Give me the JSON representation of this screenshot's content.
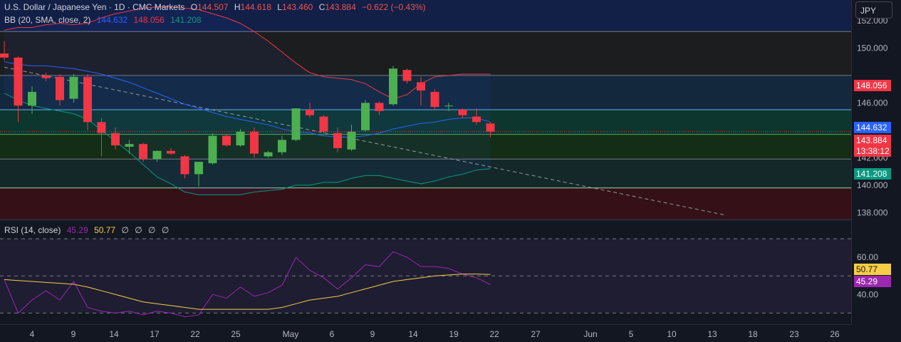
{
  "header": {
    "symbol": "U.S. Dollar / Japanese Yen · 1D · CMC Markets",
    "open_label": "O",
    "open": "144.507",
    "high_label": "H",
    "high": "144.618",
    "low_label": "L",
    "low": "143.460",
    "close_label": "C",
    "close": "143.884",
    "change": "−0.622 (−0.43%)"
  },
  "bb_legend": {
    "label": "BB (20, SMA, close, 2)",
    "middle": "144.632",
    "upper": "148.056",
    "lower": "141.208"
  },
  "rsi_legend": {
    "label": "RSI (14, close)",
    "rsi": "45.29",
    "ma": "50.77",
    "extras": [
      "∅",
      "∅",
      "∅",
      "∅"
    ]
  },
  "currency_button": "JPY",
  "price_tags": {
    "upper": "148.056",
    "middle": "144.632",
    "last": "143.884",
    "countdown": "13:38:12",
    "lower": "141.208"
  },
  "rsi_tags": {
    "ma": "50.77",
    "rsi": "45.29"
  },
  "colors": {
    "background": "#131722",
    "up": "#4caf50",
    "down": "#f23645",
    "bb_upper": "#f23645",
    "bb_middle": "#2962ff",
    "bb_lower": "#089981",
    "rsi_line": "#9c27b0",
    "rsi_ma": "#f7cd45",
    "last_price": "#f23645"
  },
  "chart_data": [
    {
      "type": "candlestick",
      "title": "U.S. Dollar / Japanese Yen · 1D · CMC Markets",
      "ylabel": "JPY",
      "ylim": [
        137.5,
        153.5
      ],
      "y_ticks": [
        138.0,
        140.0,
        142.0,
        144.0,
        146.0,
        150.0,
        152.0
      ],
      "x_ticks": [
        "4",
        "9",
        "14",
        "17",
        "22",
        "25",
        "May",
        "6",
        "9",
        "14",
        "19",
        "22",
        "27",
        "Jun",
        "5",
        "10",
        "13",
        "18",
        "23",
        "26"
      ],
      "bars": [
        {
          "o": 149.6,
          "h": 150.5,
          "l": 149.1,
          "c": 149.3
        },
        {
          "o": 149.3,
          "h": 149.4,
          "l": 144.6,
          "c": 145.8
        },
        {
          "o": 145.8,
          "h": 147.2,
          "l": 145.2,
          "c": 146.8
        },
        {
          "o": 148.0,
          "h": 148.2,
          "l": 147.6,
          "c": 147.8
        },
        {
          "o": 147.9,
          "h": 148.1,
          "l": 145.8,
          "c": 146.2
        },
        {
          "o": 146.3,
          "h": 148.1,
          "l": 146.0,
          "c": 147.9
        },
        {
          "o": 147.9,
          "h": 148.1,
          "l": 144.0,
          "c": 144.6
        },
        {
          "o": 144.6,
          "h": 144.9,
          "l": 142.1,
          "c": 143.8
        },
        {
          "o": 143.8,
          "h": 144.2,
          "l": 142.6,
          "c": 142.9
        },
        {
          "o": 142.8,
          "h": 143.3,
          "l": 142.3,
          "c": 143.0
        },
        {
          "o": 143.0,
          "h": 143.1,
          "l": 141.7,
          "c": 141.9
        },
        {
          "o": 141.9,
          "h": 142.5,
          "l": 141.7,
          "c": 142.5
        },
        {
          "o": 142.5,
          "h": 142.7,
          "l": 142.2,
          "c": 142.3
        },
        {
          "o": 142.1,
          "h": 142.2,
          "l": 140.5,
          "c": 140.8
        },
        {
          "o": 140.8,
          "h": 141.6,
          "l": 139.9,
          "c": 141.7
        },
        {
          "o": 141.6,
          "h": 143.8,
          "l": 141.5,
          "c": 143.6
        },
        {
          "o": 143.6,
          "h": 143.7,
          "l": 142.8,
          "c": 142.9
        },
        {
          "o": 142.9,
          "h": 144.1,
          "l": 142.8,
          "c": 143.9
        },
        {
          "o": 143.9,
          "h": 144.2,
          "l": 142.0,
          "c": 142.3
        },
        {
          "o": 142.1,
          "h": 142.5,
          "l": 142.0,
          "c": 142.4
        },
        {
          "o": 142.4,
          "h": 143.6,
          "l": 142.2,
          "c": 143.3
        },
        {
          "o": 143.3,
          "h": 145.6,
          "l": 143.2,
          "c": 145.6
        },
        {
          "o": 145.5,
          "h": 146.0,
          "l": 144.9,
          "c": 145.1
        },
        {
          "o": 145.0,
          "h": 145.1,
          "l": 143.8,
          "c": 143.9
        },
        {
          "o": 143.8,
          "h": 144.2,
          "l": 142.4,
          "c": 142.7
        },
        {
          "o": 142.6,
          "h": 144.4,
          "l": 142.5,
          "c": 143.9
        },
        {
          "o": 144.0,
          "h": 146.2,
          "l": 143.9,
          "c": 146.0
        },
        {
          "o": 146.0,
          "h": 146.1,
          "l": 145.1,
          "c": 145.4
        },
        {
          "o": 145.9,
          "h": 148.7,
          "l": 145.8,
          "c": 148.5
        },
        {
          "o": 148.4,
          "h": 148.5,
          "l": 147.4,
          "c": 147.6
        },
        {
          "o": 147.5,
          "h": 147.9,
          "l": 145.8,
          "c": 146.9
        },
        {
          "o": 146.8,
          "h": 147.0,
          "l": 145.5,
          "c": 145.7
        },
        {
          "o": 145.8,
          "h": 146.0,
          "l": 145.4,
          "c": 145.8
        },
        {
          "o": 145.5,
          "h": 145.6,
          "l": 144.9,
          "c": 145.1
        },
        {
          "o": 145.0,
          "h": 145.6,
          "l": 144.4,
          "c": 144.6
        },
        {
          "o": 144.5,
          "h": 144.6,
          "l": 143.5,
          "c": 143.9
        }
      ],
      "bb_upper": [
        151.3,
        151.5,
        151.5,
        151.7,
        151.8,
        151.7,
        151.8,
        152.2,
        152.5,
        152.7,
        152.9,
        153.0,
        153.0,
        152.9,
        152.8,
        152.5,
        152.2,
        151.8,
        151.2,
        150.5,
        149.7,
        148.9,
        148.2,
        147.9,
        147.8,
        147.7,
        147.4,
        146.8,
        146.3,
        146.6,
        147.4,
        147.9,
        148.0,
        148.1,
        148.1,
        148.1
      ],
      "bb_middle": [
        149.0,
        148.8,
        148.7,
        148.7,
        148.6,
        148.5,
        148.3,
        148.1,
        147.8,
        147.5,
        147.1,
        146.7,
        146.3,
        145.9,
        145.6,
        145.3,
        145.0,
        144.8,
        144.6,
        144.4,
        144.1,
        143.9,
        143.8,
        143.6,
        143.5,
        143.5,
        143.6,
        143.8,
        144.1,
        144.3,
        144.5,
        144.6,
        144.8,
        144.9,
        144.9,
        144.6
      ],
      "bb_lower": [
        146.7,
        146.2,
        145.8,
        145.6,
        145.4,
        145.2,
        144.8,
        144.0,
        143.2,
        142.4,
        141.5,
        140.6,
        140.1,
        139.5,
        139.3,
        139.3,
        139.3,
        139.3,
        139.5,
        139.6,
        139.7,
        140.0,
        140.0,
        140.2,
        140.2,
        140.5,
        140.7,
        140.7,
        140.5,
        140.3,
        140.1,
        140.3,
        140.6,
        140.8,
        141.1,
        141.2
      ],
      "trendline": {
        "from": {
          "bar": 0,
          "price": 148.6
        },
        "to": {
          "bar": 52,
          "price": 137.8
        }
      },
      "zones": [
        {
          "from": 151.2,
          "to": 153.7
        },
        {
          "from": 148.0,
          "to": 151.2
        },
        {
          "from": 145.5,
          "to": 148.0
        },
        {
          "from": 143.7,
          "to": 145.5
        },
        {
          "from": 141.9,
          "to": 143.7
        },
        {
          "from": 139.8,
          "to": 141.9
        },
        {
          "from": 137.5,
          "to": 139.8
        }
      ],
      "hlines": [
        151.2,
        148.0,
        145.5,
        143.7,
        141.9,
        139.8
      ]
    },
    {
      "type": "line",
      "title": "RSI (14, close)",
      "ylim": [
        24,
        80
      ],
      "y_ticks": [
        40.0,
        60.0
      ],
      "bands": [
        30,
        50,
        70
      ],
      "series": [
        {
          "name": "RSI",
          "values": [
            48,
            30,
            37,
            42,
            37,
            47,
            33,
            31,
            30,
            31,
            29,
            31,
            30,
            28,
            29,
            40,
            38,
            44,
            39,
            41,
            45,
            60,
            53,
            49,
            43,
            49,
            56,
            55,
            63,
            60,
            55,
            55,
            54,
            51,
            49,
            45.29
          ]
        },
        {
          "name": "RSI MA",
          "values": [
            48,
            47.5,
            47,
            46.5,
            46,
            45.5,
            44,
            42,
            40,
            38,
            36,
            35,
            34,
            33,
            32,
            32,
            32,
            32,
            32,
            32,
            33,
            35,
            37,
            38,
            39,
            41,
            43,
            45,
            47,
            48,
            49,
            50,
            50.5,
            51,
            51,
            50.77
          ]
        }
      ]
    }
  ]
}
